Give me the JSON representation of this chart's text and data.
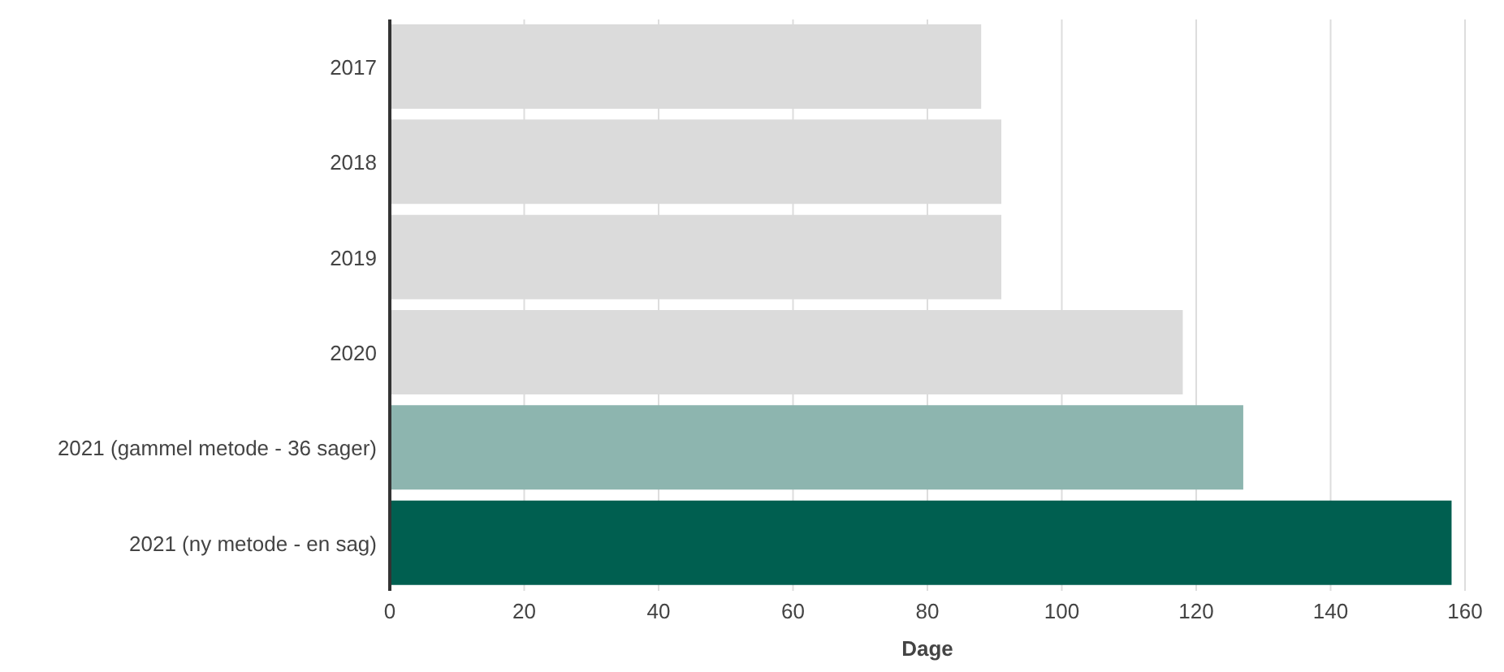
{
  "chart_data": {
    "type": "bar",
    "orientation": "horizontal",
    "categories": [
      "2017",
      "2018",
      "2019",
      "2020",
      "2021 (gammel metode - 36 sager)",
      "2021 (ny metode - en sag)"
    ],
    "values": [
      88,
      91,
      91,
      118,
      127,
      158
    ],
    "colors": [
      "#dbdbdb",
      "#dbdbdb",
      "#dbdbdb",
      "#dbdbdb",
      "#8db5af",
      "#005f50"
    ],
    "xlabel": "Dage",
    "xlim": [
      0,
      160
    ],
    "xticks": [
      0,
      20,
      40,
      60,
      80,
      100,
      120,
      140,
      160
    ],
    "grid": "x"
  }
}
